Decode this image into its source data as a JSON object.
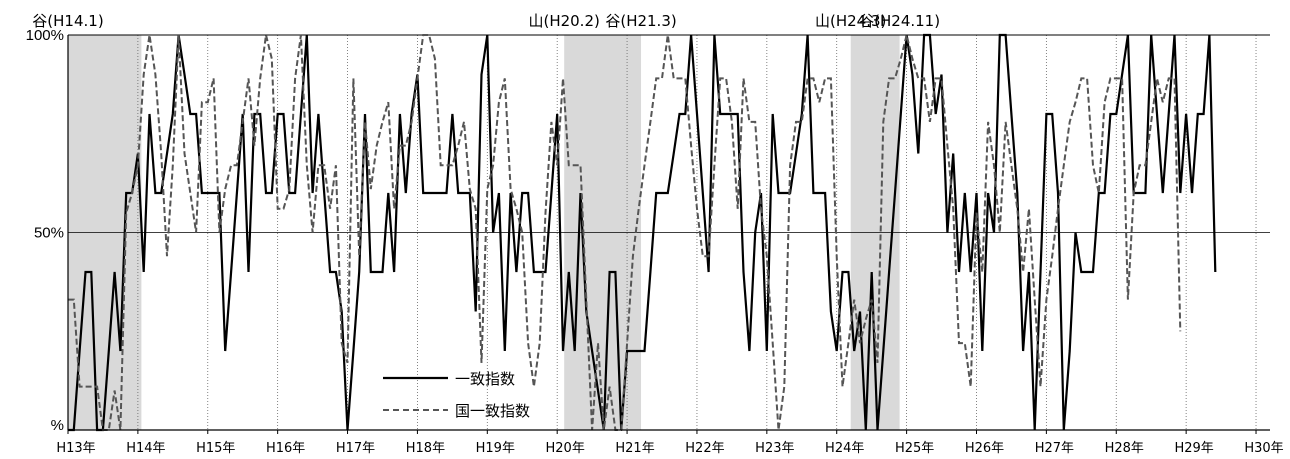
{
  "chart_data": {
    "type": "line",
    "title": "",
    "xlabel": "",
    "ylabel": "",
    "x_start": "H13",
    "x_end": "H30",
    "points_per_year": 12,
    "ylim": [
      0,
      100
    ],
    "y_ticks": [
      "%",
      "50%",
      "100%"
    ],
    "x_ticks": [
      "H13年",
      "H14年",
      "H15年",
      "H16年",
      "H17年",
      "H18年",
      "H19年",
      "H20年",
      "H21年",
      "H22年",
      "H23年",
      "H24年",
      "H25年",
      "H26年",
      "H27年",
      "H28年",
      "H29年",
      "H30年"
    ],
    "annotations": [
      {
        "label": "谷(H14.1)",
        "x": 13.0
      },
      {
        "label": "山(H20.2)",
        "x": 20.1
      },
      {
        "label": "谷(H21.3)",
        "x": 21.2
      },
      {
        "label": "山(H24.3)",
        "x": 24.2
      },
      {
        "label": "谷(H24.11)",
        "x": 24.9
      }
    ],
    "recession_shading": [
      [
        13.0,
        14.05
      ],
      [
        20.1,
        21.2
      ],
      [
        24.2,
        24.9
      ]
    ],
    "series": [
      {
        "name": "一致指数",
        "style": "solid",
        "color": "#000000",
        "values": [
          0,
          0,
          20,
          40,
          40,
          0,
          0,
          20,
          40,
          20,
          60,
          60,
          70,
          40,
          80,
          60,
          60,
          70,
          80,
          100,
          90,
          80,
          80,
          60,
          60,
          60,
          60,
          20,
          40,
          60,
          80,
          40,
          80,
          80,
          60,
          60,
          80,
          80,
          60,
          60,
          80,
          100,
          60,
          80,
          60,
          40,
          40,
          30,
          0,
          20,
          40,
          80,
          40,
          40,
          40,
          60,
          40,
          80,
          60,
          80,
          90,
          60,
          60,
          60,
          60,
          60,
          80,
          60,
          60,
          60,
          30,
          90,
          100,
          50,
          60,
          20,
          60,
          40,
          60,
          60,
          40,
          40,
          40,
          60,
          80,
          20,
          40,
          20,
          60,
          30,
          20,
          10,
          0,
          40,
          40,
          0,
          20,
          20,
          20,
          20,
          40,
          60,
          60,
          60,
          70,
          80,
          80,
          100,
          80,
          60,
          40,
          100,
          80,
          80,
          80,
          80,
          40,
          20,
          50,
          60,
          20,
          80,
          60,
          60,
          60,
          70,
          80,
          100,
          60,
          60,
          60,
          30,
          20,
          40,
          40,
          20,
          30,
          0,
          40,
          0,
          20,
          40,
          60,
          80,
          100,
          90,
          70,
          100,
          100,
          80,
          90,
          50,
          70,
          40,
          60,
          40,
          60,
          20,
          60,
          50,
          100,
          100,
          80,
          60,
          20,
          40,
          0,
          40,
          80,
          80,
          60,
          0,
          20,
          50,
          40,
          40,
          40,
          60,
          60,
          80,
          80,
          90,
          100,
          60,
          60,
          60,
          100,
          80,
          60,
          80,
          100,
          60,
          80,
          60,
          80,
          80,
          100,
          40
        ]
      },
      {
        "name": "国一致指数",
        "style": "dashed",
        "color": "#555555",
        "values": [
          33,
          33,
          11,
          11,
          11,
          11,
          0,
          0,
          10,
          0,
          55,
          60,
          67,
          90,
          100,
          90,
          70,
          44,
          67,
          100,
          70,
          60,
          50,
          83,
          83,
          89,
          50,
          61,
          67,
          67,
          78,
          89,
          72,
          89,
          100,
          94,
          56,
          56,
          61,
          89,
          100,
          67,
          50,
          67,
          67,
          56,
          67,
          22,
          17,
          89,
          44,
          78,
          61,
          72,
          78,
          83,
          56,
          72,
          72,
          78,
          89,
          100,
          100,
          94,
          67,
          67,
          67,
          72,
          78,
          61,
          56,
          17,
          61,
          67,
          83,
          89,
          61,
          56,
          50,
          22,
          11,
          22,
          55,
          78,
          67,
          89,
          67,
          67,
          67,
          33,
          0,
          22,
          0,
          11,
          0,
          0,
          22,
          44,
          56,
          67,
          78,
          89,
          89,
          100,
          89,
          89,
          89,
          72,
          56,
          44,
          44,
          67,
          89,
          89,
          78,
          56,
          89,
          78,
          78,
          56,
          44,
          22,
          0,
          11,
          67,
          78,
          78,
          89,
          89,
          83,
          89,
          89,
          44,
          11,
          22,
          33,
          22,
          28,
          33,
          17,
          78,
          89,
          89,
          94,
          100,
          94,
          89,
          89,
          78,
          89,
          89,
          72,
          56,
          22,
          22,
          11,
          55,
          40,
          78,
          67,
          50,
          78,
          67,
          56,
          40,
          56,
          33,
          11,
          33,
          44,
          56,
          67,
          78,
          83,
          89,
          89,
          67,
          60,
          83,
          89,
          89,
          89,
          33,
          60,
          67,
          67,
          78,
          89,
          83,
          89,
          89,
          25
        ]
      }
    ],
    "legend": {
      "placement": "lower-center",
      "entries": [
        "一致指数",
        "国一致指数"
      ]
    }
  }
}
